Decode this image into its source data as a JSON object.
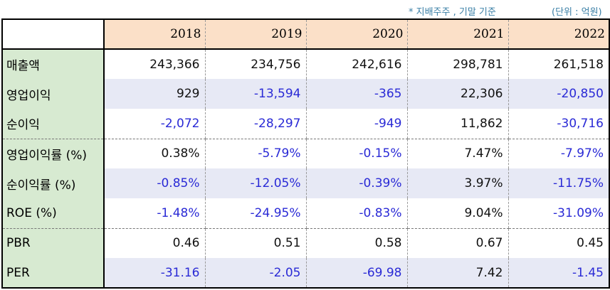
{
  "notes": {
    "basis": "* 지배주주 , 기말 기준",
    "unit": "(단위 : 억원)"
  },
  "header": {
    "years": [
      "2018",
      "2019",
      "2020",
      "2021",
      "2022"
    ]
  },
  "rows": [
    {
      "label": "매출액",
      "values": [
        "243,366",
        "234,756",
        "242,616",
        "298,781",
        "261,518"
      ]
    },
    {
      "label": "영업이익",
      "values": [
        "929",
        "-13,594",
        "-365",
        "22,306",
        "-20,850"
      ]
    },
    {
      "label": "순이익",
      "values": [
        "-2,072",
        "-28,297",
        "-949",
        "11,862",
        "-30,716"
      ]
    },
    {
      "label": "영업이익률 (%)",
      "values": [
        "0.38%",
        "-5.79%",
        "-0.15%",
        "7.47%",
        "-7.97%"
      ]
    },
    {
      "label": "순이익률 (%)",
      "values": [
        "-0.85%",
        "-12.05%",
        "-0.39%",
        "3.97%",
        "-11.75%"
      ]
    },
    {
      "label": "ROE (%)",
      "values": [
        "-1.48%",
        "-24.95%",
        "-0.83%",
        "9.04%",
        "-31.09%"
      ]
    },
    {
      "label": "PBR",
      "values": [
        "0.46",
        "0.51",
        "0.58",
        "0.67",
        "0.45"
      ]
    },
    {
      "label": "PER",
      "values": [
        "-31.16",
        "-2.05",
        "-69.98",
        "7.42",
        "-1.45"
      ]
    }
  ],
  "colors": {
    "header_bg": "#fbe0c8",
    "label_bg": "#d7ead1",
    "shade_bg": "#e7e9f5",
    "negative_text": "#2a2ad6",
    "note_text": "#3a7fa6"
  }
}
